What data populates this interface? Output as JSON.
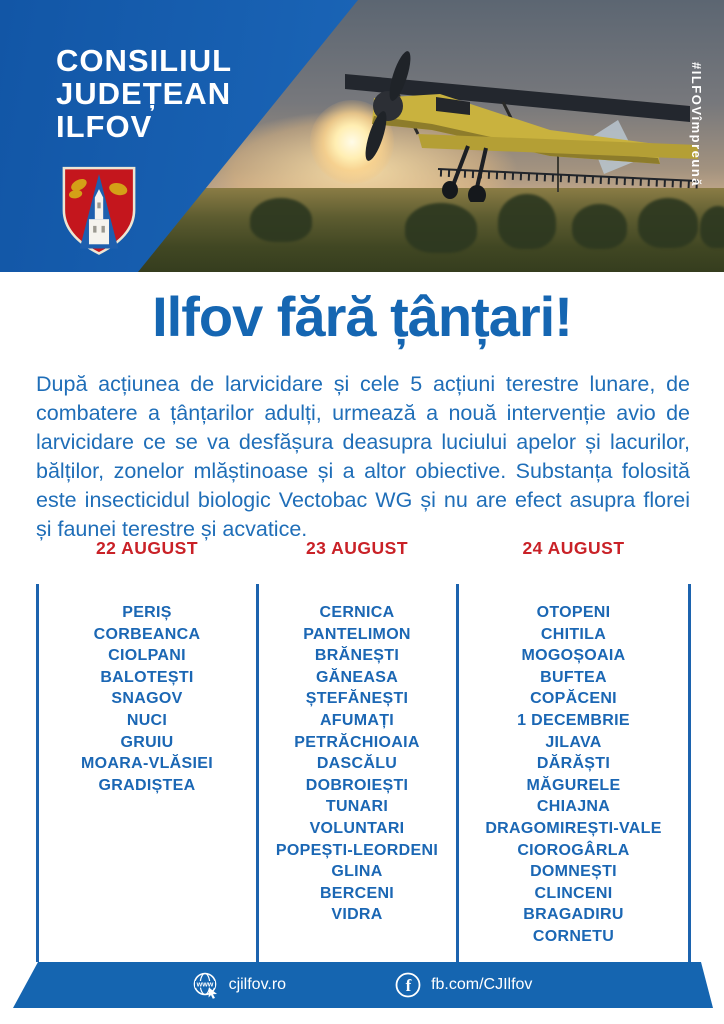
{
  "header": {
    "org_lines": [
      "CONSILIUL",
      "JUDEȚEAN",
      "ILFOV"
    ],
    "hashtag": "#ILFOVîmpreună",
    "emblem": "ilfov-county-coat-of-arms",
    "photo": "crop-duster-biplane-spraying-over-field-at-sunset"
  },
  "title": "Ilfov fără țânțari!",
  "intro": "După acțiunea de larvicidare și cele 5 acțiuni terestre lunare, de combatere a țânțarilor adulți, urmează a nouă intervenție  avio de larvicidare ce se va desfășura deasupra luciului apelor  și lacurilor, bălților, zonelor mlăștinoase și a altor obiective. Substanța folosită este insecticidul biologic Vectobac WG și nu are efect asupra florei și faunei terestre și acvatice.",
  "schedule": {
    "columns": [
      {
        "date": "22 AUGUST",
        "localities": [
          "PERIȘ",
          "CORBEANCA",
          "CIOLPANI",
          "BALOTEȘTI",
          "SNAGOV",
          "NUCI",
          "GRUIU",
          "MOARA-VLĂSIEI",
          "GRADIȘTEA"
        ]
      },
      {
        "date": "23 AUGUST",
        "localities": [
          "CERNICA",
          "PANTELIMON",
          "BRĂNEȘTI",
          "GĂNEASA",
          "ȘTEFĂNEȘTI",
          "AFUMAȚI",
          "PETRĂCHIOAIA",
          "DASCĂLU",
          "DOBROIEȘTI",
          "TUNARI",
          "VOLUNTARI",
          "POPEȘTI-LEORDENI",
          "GLINA",
          "BERCENI",
          "VIDRA"
        ]
      },
      {
        "date": "24 AUGUST",
        "localities": [
          "OTOPENI",
          "CHITILA",
          "MOGOȘOAIA",
          "BUFTEA",
          "COPĂCENI",
          "1 DECEMBRIE",
          "JILAVA",
          "DĂRĂȘTI",
          "MĂGURELE",
          "CHIAJNA",
          "DRAGOMIREȘTI-VALE",
          "CIOROGÂRLA",
          "DOMNEȘTI",
          "CLINCENI",
          "BRAGADIRU",
          "CORNETU"
        ]
      }
    ]
  },
  "footer": {
    "website": "cjilfov.ro",
    "facebook": "fb.com/CJIlfov",
    "website_icon": "globe-www-icon",
    "facebook_icon": "facebook-icon"
  },
  "colors": {
    "header_blue": "#1b66b8",
    "text_blue": "#1f6eb8",
    "accent_red": "#c92127",
    "footer_blue": "#1565b0"
  }
}
